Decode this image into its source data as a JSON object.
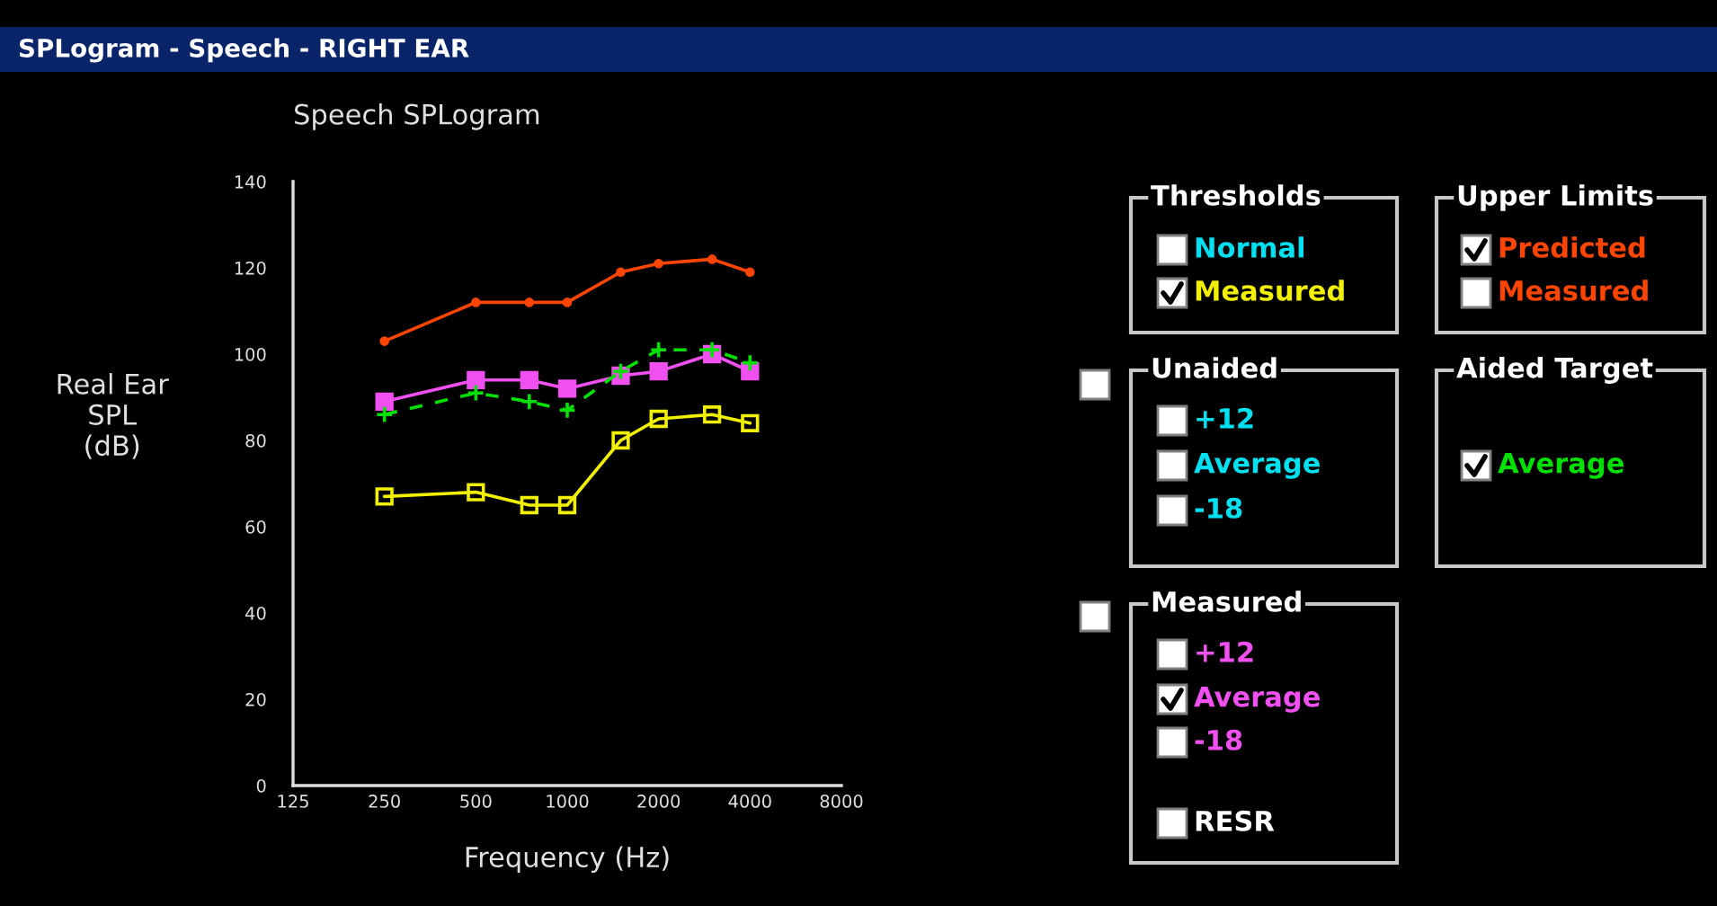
{
  "chart_data": {
    "type": "line",
    "title": "Speech SPLogram",
    "xlabel": "Frequency (Hz)",
    "ylabel": "Real Ear\nSPL\n(dB)",
    "log": "x",
    "xlim": [
      125,
      8000
    ],
    "xticks": [
      125,
      250,
      500,
      1000,
      2000,
      4000,
      8000
    ],
    "ylim": [
      0,
      140
    ],
    "yticks": [
      0,
      20,
      40,
      60,
      80,
      100,
      120,
      140
    ],
    "grid": false,
    "legend": "right",
    "series": [
      {
        "name": "Measured",
        "color": "#f0f000",
        "marker": "square",
        "line_style": "solid",
        "x": [
          250,
          500,
          750,
          1000,
          1500,
          2000,
          3000,
          4000
        ],
        "values": [
          67,
          68,
          65,
          65,
          80,
          85,
          86,
          84
        ]
      },
      {
        "name": "Predicted",
        "color": "#ff4500",
        "marker": "circle",
        "line_style": "solid",
        "x": [
          250,
          500,
          750,
          1000,
          1500,
          2000,
          3000,
          4000
        ],
        "values": [
          103,
          112,
          112,
          112,
          119,
          121,
          122,
          119
        ]
      },
      {
        "name": "Average",
        "color": "#00e000",
        "marker": "cross",
        "line_style": "dashed",
        "x": [
          250,
          500,
          750,
          1000,
          1500,
          2000,
          3000,
          4000
        ],
        "values": [
          86,
          91,
          89,
          87,
          96,
          101,
          101,
          98
        ]
      },
      {
        "name": "Average",
        "color": "#f050f0",
        "marker": "square",
        "line_style": "solid",
        "x": [
          250,
          500,
          750,
          1000,
          1500,
          2000,
          3000,
          4000
        ],
        "values": [
          89,
          94,
          94,
          92,
          95,
          96,
          100,
          96
        ]
      }
    ],
    "annotations": [
      "Thresholds",
      "Normal",
      "Upper Limits",
      "Measured",
      "Unaided",
      "+12",
      "Average",
      "-18",
      "Aided Target",
      "Measured",
      "+12",
      "-18",
      "RESR",
      "SPLogram - Speech - RIGHT EAR"
    ]
  }
}
